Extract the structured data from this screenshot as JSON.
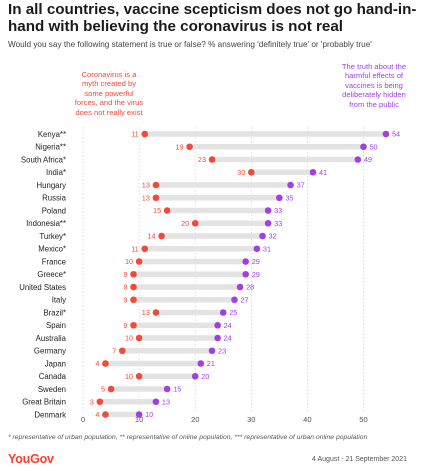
{
  "brand": {
    "logo_text": "YouGov"
  },
  "colors": {
    "myth": "#ef4a3b",
    "vaccine": "#a13fe6",
    "track": "#e3e3e3",
    "grid": "#c8c8c8",
    "text": "#222222"
  },
  "chart_data": {
    "type": "scatter",
    "title": "In all countries, vaccine scepticism does not go hand-in-hand with believing the coronavirus is not real",
    "subtitle": "Would you say the following statement is true or false? % answering 'definitely true' or 'probably true'",
    "categories": [
      "Kenya**",
      "Nigeria**",
      "South Africa*",
      "India*",
      "Hungary",
      "Russia",
      "Poland",
      "Indonesia**",
      "Turkey*",
      "Mexico*",
      "France",
      "Greece*",
      "United States",
      "Italy",
      "Brazil*",
      "Spain",
      "Australia",
      "Germany",
      "Japan",
      "Canada",
      "Sweden",
      "Great Britain",
      "Denmark"
    ],
    "series": [
      {
        "name": "Coronavirus is a myth created by some powerful forces, and the virus does not really exist",
        "values": [
          11,
          19,
          23,
          30,
          13,
          13,
          15,
          20,
          14,
          11,
          10,
          9,
          9,
          9,
          13,
          9,
          10,
          7,
          4,
          10,
          5,
          3,
          4
        ]
      },
      {
        "name": "The truth about the harmful effects of vaccines is being deliberately hidden from the public",
        "values": [
          54,
          50,
          49,
          41,
          37,
          35,
          33,
          33,
          32,
          31,
          29,
          29,
          28,
          27,
          25,
          24,
          24,
          23,
          21,
          20,
          15,
          13,
          10
        ]
      }
    ],
    "xticks": [
      "0",
      "10",
      "20",
      "30",
      "40",
      "50"
    ],
    "xlim": [
      0,
      56
    ],
    "grid": true,
    "footnote": "* representative of urban population, ** representative of online population, *** representative of urban online population",
    "dates": "4 August - 21 September 2021"
  }
}
